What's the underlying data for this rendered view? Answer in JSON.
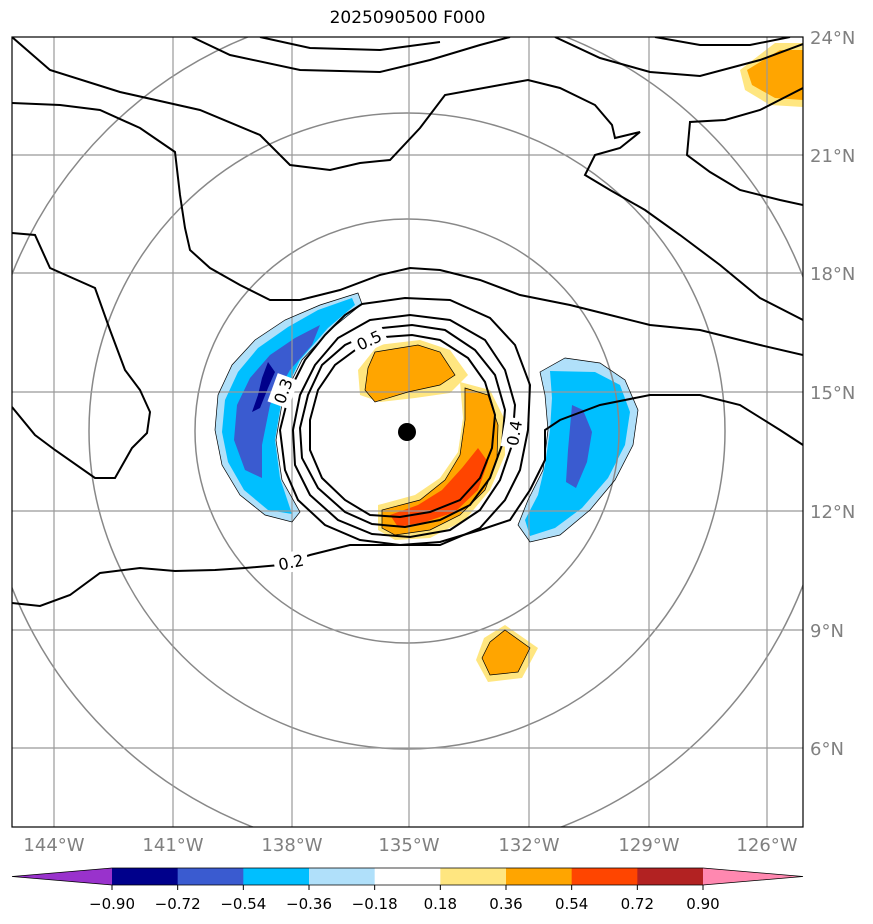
{
  "title": "2025090500 F000",
  "lon_labels": [
    "144°W",
    "141°W",
    "138°W",
    "135°W",
    "132°W",
    "129°W",
    "126°W"
  ],
  "lat_labels": [
    "24°N",
    "21°N",
    "18°N",
    "15°N",
    "12°N",
    "9°N",
    "6°N"
  ],
  "contour_labels": [
    "0.5",
    "0.3",
    "0.4",
    "0.2"
  ],
  "colorbar": {
    "colors": [
      "#9932cc",
      "#00008b",
      "#3a5bd0",
      "#00bfff",
      "#b0e0fa",
      "#ffffff",
      "#ffe680",
      "#ffa500",
      "#ff4500",
      "#b22222",
      "#ff88b0"
    ],
    "tick_labels": [
      "−0.90",
      "−0.72",
      "−0.54",
      "−0.36",
      "−0.18",
      "0.18",
      "0.36",
      "0.54",
      "0.72",
      "0.90"
    ]
  }
}
